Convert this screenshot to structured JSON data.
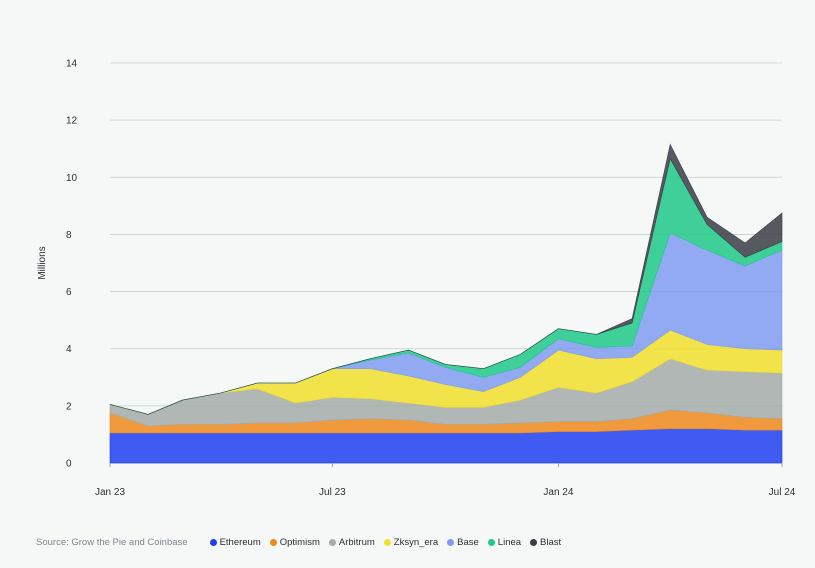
{
  "chart_data": {
    "type": "area",
    "stacked": true,
    "title": "",
    "xlabel": "",
    "ylabel": "Millions",
    "ylim": [
      0,
      14
    ],
    "y_ticks": [
      "0",
      "2",
      "4",
      "6",
      "8",
      "10",
      "12",
      "14"
    ],
    "xlim": [
      "2023-01-01",
      "2024-07-01"
    ],
    "x_ticks": [
      {
        "date": "2023-01-01",
        "label": "Jan 23"
      },
      {
        "date": "2023-07-01",
        "label": "Jul 23"
      },
      {
        "date": "2024-01-01",
        "label": "Jan 24"
      },
      {
        "date": "2024-07-01",
        "label": "Jul 24"
      }
    ],
    "grid": "horizontal",
    "legend_position": "bottom",
    "x": [
      "2023-01",
      "2023-02",
      "2023-03",
      "2023-04",
      "2023-05",
      "2023-06",
      "2023-07",
      "2023-08",
      "2023-09",
      "2023-10",
      "2023-11",
      "2023-12",
      "2024-01",
      "2024-02",
      "2024-03",
      "2024-04",
      "2024-05",
      "2024-06",
      "2024-07"
    ],
    "series": [
      {
        "name": "Ethereum",
        "color": "#1e3ff0",
        "values": [
          1.05,
          1.05,
          1.05,
          1.05,
          1.05,
          1.05,
          1.05,
          1.05,
          1.05,
          1.05,
          1.05,
          1.05,
          1.1,
          1.1,
          1.15,
          1.2,
          1.2,
          1.15,
          1.15
        ]
      },
      {
        "name": "Optimism",
        "color": "#f08a1c",
        "values": [
          0.7,
          0.25,
          0.3,
          0.3,
          0.35,
          0.35,
          0.45,
          0.5,
          0.45,
          0.3,
          0.3,
          0.35,
          0.35,
          0.35,
          0.4,
          0.65,
          0.55,
          0.45,
          0.4
        ]
      },
      {
        "name": "Arbitrum",
        "color": "#a3aca8",
        "values": [
          0.3,
          0.4,
          0.85,
          1.1,
          1.2,
          0.7,
          0.8,
          0.7,
          0.6,
          0.6,
          0.6,
          0.8,
          1.2,
          1.0,
          1.3,
          1.8,
          1.5,
          1.6,
          1.6
        ]
      },
      {
        "name": "Zksyn_era",
        "color": "#f2df2c",
        "values": [
          0.0,
          0.0,
          0.0,
          0.0,
          0.2,
          0.7,
          1.0,
          1.05,
          0.95,
          0.8,
          0.55,
          0.8,
          1.3,
          1.2,
          0.85,
          1.0,
          0.9,
          0.8,
          0.8
        ]
      },
      {
        "name": "Base",
        "color": "#7f9cf0",
        "values": [
          0.0,
          0.0,
          0.0,
          0.0,
          0.0,
          0.0,
          0.0,
          0.3,
          0.8,
          0.6,
          0.5,
          0.35,
          0.4,
          0.4,
          0.4,
          3.4,
          3.3,
          2.9,
          3.5
        ]
      },
      {
        "name": "Linea",
        "color": "#1fc98a",
        "values": [
          0.0,
          0.0,
          0.0,
          0.0,
          0.0,
          0.0,
          0.0,
          0.05,
          0.1,
          0.1,
          0.3,
          0.45,
          0.35,
          0.45,
          0.8,
          2.6,
          0.9,
          0.3,
          0.3
        ]
      },
      {
        "name": "Blast",
        "color": "#3a3d44",
        "values": [
          0.0,
          0.0,
          0.0,
          0.0,
          0.0,
          0.0,
          0.0,
          0.0,
          0.0,
          0.0,
          0.0,
          0.0,
          0.0,
          0.0,
          0.15,
          0.5,
          0.25,
          0.5,
          1.0
        ]
      }
    ]
  },
  "footer": {
    "source": "Source: Grow the Pie and Coinbase"
  }
}
